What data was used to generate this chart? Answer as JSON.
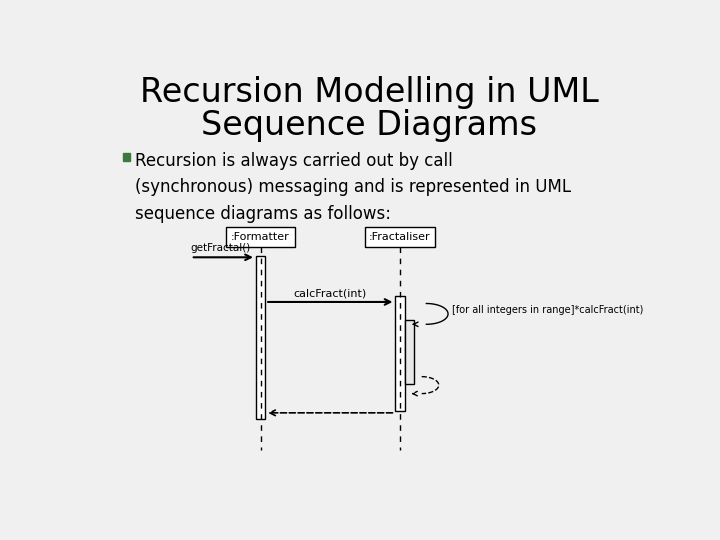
{
  "title_line1": "Recursion Modelling in UML",
  "title_line2": "Sequence Diagrams",
  "title_fontsize": 24,
  "title_fontweight": "normal",
  "bullet_text": "Recursion is always carried out by call\n(synchronous) messaging and is represented in UML\nsequence diagrams as follows:",
  "bullet_fontsize": 12,
  "bullet_color": "#3a7a3a",
  "background_color": "#f0f0f0",
  "text_color": "#000000",
  "formatter_label": ":Formatter",
  "fractaliser_label": ":Fractaliser",
  "get_fractal_label": "getFractal()",
  "calc_fract_label": "calcFract(int)",
  "recursion_label": "[for all integers in range]*calcFract(int)"
}
